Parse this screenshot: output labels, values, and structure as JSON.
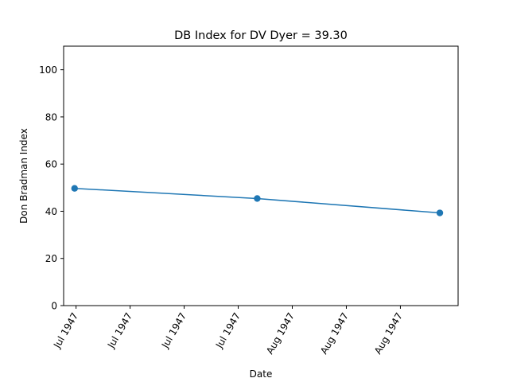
{
  "chart_data": {
    "type": "line",
    "title": "DB Index for DV Dyer = 39.30",
    "xlabel": "Date",
    "ylabel": "Don Bradman Index",
    "ylim": [
      0,
      110
    ],
    "yticks": [
      0,
      20,
      40,
      60,
      80,
      100
    ],
    "xtick_labels": [
      "Jul 1947",
      "Jul 1947",
      "Jul 1947",
      "Jul 1947",
      "Aug 1947",
      "Aug 1947",
      "Aug 1947"
    ],
    "grid": false,
    "series": [
      {
        "color": "#1f77b4",
        "marker": "circle",
        "points": [
          {
            "x": "1947-07-03",
            "y": 49.7
          },
          {
            "x": "1947-07-28",
            "y": 45.4
          },
          {
            "x": "1947-08-22",
            "y": 39.3
          }
        ]
      }
    ]
  }
}
